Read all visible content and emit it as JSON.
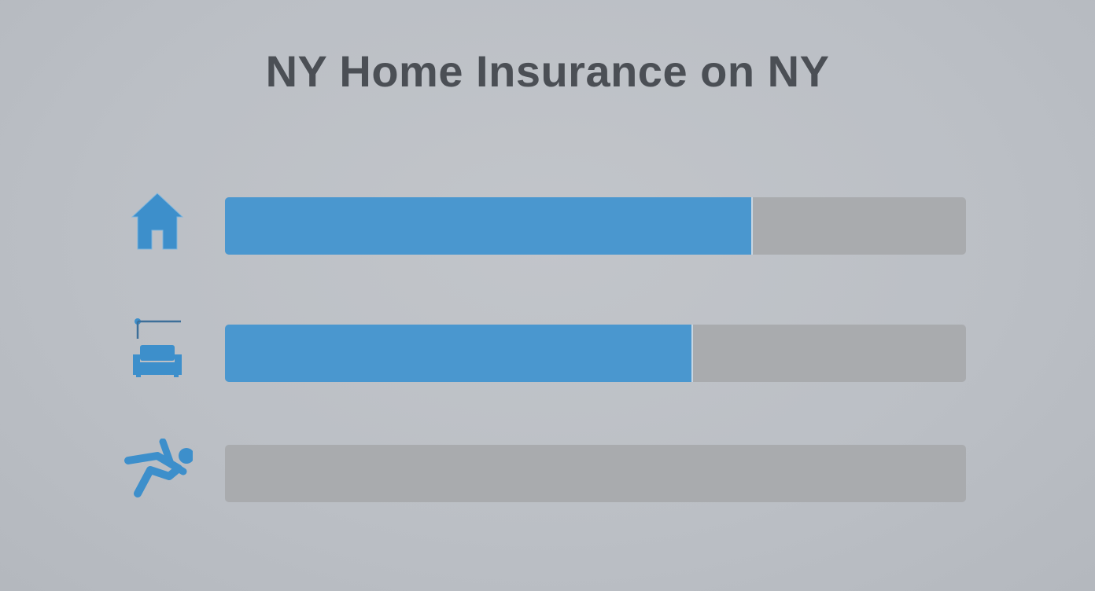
{
  "title": "NY Home Insurance on NY",
  "colors": {
    "fill": "#4a97cf",
    "track": "#a9abae",
    "title": "#4b4f55"
  },
  "chart_data": {
    "type": "bar",
    "orientation": "horizontal",
    "title": "NY Home Insurance on NY",
    "categories": [
      "",
      "",
      ""
    ],
    "category_icons": [
      "house-icon",
      "couch-lamp-icon",
      "falling-person-icon"
    ],
    "values": [
      71,
      63,
      0
    ],
    "unit": "percent",
    "xlim": [
      0,
      100
    ],
    "grid": false
  }
}
